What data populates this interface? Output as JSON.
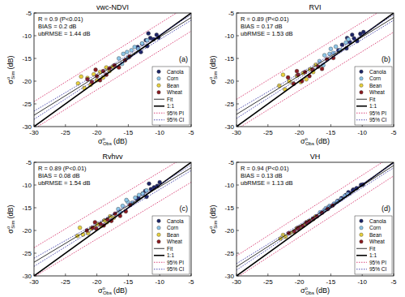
{
  "chart_data": [
    {
      "type": "scatter",
      "title": "vwc-NDVI",
      "annotations": [
        "R = 0.9 (P<0.01)",
        "BIAS = 0.2 dB",
        "ubRMSE = 1.44 dB"
      ],
      "panel_label": "(a)",
      "xlabel": {
        "symbol": "σ",
        "sup": "o",
        "sub": "Obs",
        "unit": "(dB)"
      },
      "ylabel": {
        "symbol": "σ",
        "sup": "o",
        "sub": "Sim",
        "unit": "(dB)"
      },
      "xlim": [
        -30,
        -5
      ],
      "ylim": [
        -30,
        -5
      ],
      "xticks": [
        -30,
        -25,
        -20,
        -15,
        -10,
        -5
      ],
      "yticks": [
        -30,
        -25,
        -20,
        -15,
        -10,
        -5
      ],
      "grid": false,
      "legend": "lower right",
      "series": [
        {
          "name": "Canola",
          "type": "scatter",
          "marker": "circle",
          "color": "#1c2466",
          "x": [
            -13.5,
            -12.8,
            -12,
            -11.5,
            -11,
            -10.5,
            -13,
            -12.2,
            -11.8,
            -10.2
          ],
          "values": [
            -12.5,
            -11.8,
            -12.3,
            -10.5,
            -10.8,
            -9.8,
            -13.6,
            -11,
            -9.5,
            -10.4
          ]
        },
        {
          "name": "Corn",
          "type": "scatter",
          "marker": "circle",
          "color": "#8ec6e8",
          "x": [
            -16.5,
            -15.8,
            -15,
            -14.5,
            -14,
            -13.4,
            -12.8,
            -16,
            -15.2,
            -12
          ],
          "values": [
            -15,
            -14,
            -14.8,
            -13.2,
            -12.5,
            -12.9,
            -11.7,
            -16.2,
            -13.6,
            -11
          ]
        },
        {
          "name": "Bean",
          "type": "scatter",
          "marker": "circle",
          "color": "#e9d23c",
          "x": [
            -23,
            -22,
            -21.5,
            -21,
            -20.5,
            -20,
            -19.5,
            -19,
            -18.5,
            -18,
            -17.5,
            -22.5
          ],
          "values": [
            -20.5,
            -21.5,
            -19.3,
            -20.8,
            -18.5,
            -19.8,
            -18,
            -19.2,
            -17,
            -17.8,
            -16.8,
            -19
          ]
        },
        {
          "name": "Wheat",
          "type": "scatter",
          "marker": "circle",
          "color": "#8b1a1f",
          "x": [
            -21.5,
            -20.8,
            -20,
            -19.5,
            -19,
            -18.5,
            -18,
            -17.2,
            -16.5,
            -15.5,
            -14.8,
            -20.2
          ],
          "values": [
            -19.6,
            -20.2,
            -18.9,
            -19.8,
            -17.8,
            -18.6,
            -17.2,
            -16.5,
            -17,
            -15.4,
            -14.6,
            -17.5
          ]
        },
        {
          "name": "Fit",
          "type": "line",
          "line_style": "solid",
          "color": "#000000",
          "x": [
            -30,
            -5
          ],
          "values": [
            -27.5,
            -6
          ]
        },
        {
          "name": "1:1",
          "type": "line",
          "line_style": "thick",
          "color": "#000000",
          "x": [
            -30,
            -5
          ],
          "values": [
            -30,
            -5
          ]
        },
        {
          "name": "95% PI",
          "type": "line",
          "line_style": "dotted",
          "color": "#d6336c",
          "x": [
            -30,
            -5
          ],
          "upper": [
            -24.5,
            -3
          ],
          "lower": [
            -30.5,
            -9
          ]
        },
        {
          "name": "95% CI",
          "type": "line",
          "line_style": "dotted",
          "color": "#3b3ba8",
          "x": [
            -30,
            -17.5,
            -5
          ],
          "upper": [
            -26.6,
            -16.4,
            -5.4
          ],
          "lower": [
            -28.4,
            -17.2,
            -6.6
          ]
        }
      ]
    },
    {
      "type": "scatter",
      "title": "RVI",
      "annotations": [
        "R = 0.89 (P<0.01)",
        "BIAS = 0.17 dB",
        "ubRMSE = 1.53 dB"
      ],
      "panel_label": "(b)",
      "xlabel": {
        "symbol": "σ",
        "sup": "o",
        "sub": "Obs",
        "unit": "(dB)"
      },
      "ylabel": {
        "symbol": "σ",
        "sup": "o",
        "sub": "Sim",
        "unit": "(dB)"
      },
      "xlim": [
        -30,
        -5
      ],
      "ylim": [
        -30,
        -5
      ],
      "xticks": [
        -30,
        -25,
        -20,
        -15,
        -10,
        -5
      ],
      "yticks": [
        -30,
        -25,
        -20,
        -15,
        -10,
        -5
      ],
      "grid": false,
      "legend": "lower right",
      "series": [
        {
          "name": "Canola",
          "type": "scatter",
          "marker": "circle",
          "color": "#1c2466",
          "x": [
            -13.2,
            -12.5,
            -12,
            -11.3,
            -10.8,
            -10.3,
            -13.8,
            -12.4,
            -11.6,
            -9.8
          ],
          "values": [
            -12,
            -12.8,
            -11.4,
            -10.6,
            -11.2,
            -9.6,
            -13.2,
            -10.5,
            -9.8,
            -9.2
          ]
        },
        {
          "name": "Corn",
          "type": "scatter",
          "marker": "circle",
          "color": "#8ec6e8",
          "x": [
            -16.8,
            -16,
            -15.2,
            -14.6,
            -14.2,
            -13.5,
            -12.6,
            -16.2,
            -15,
            -12.2
          ],
          "values": [
            -15.6,
            -14.3,
            -14,
            -13.8,
            -12.4,
            -13.2,
            -11.5,
            -16.5,
            -12.9,
            -10.8
          ]
        },
        {
          "name": "Bean",
          "type": "scatter",
          "marker": "circle",
          "color": "#e9d23c",
          "x": [
            -23.2,
            -22.3,
            -21.6,
            -21,
            -20.4,
            -19.8,
            -19.4,
            -18.9,
            -18.3,
            -17.8,
            -17.4,
            -22.6
          ],
          "values": [
            -21,
            -21.8,
            -20,
            -20.5,
            -18.8,
            -20.2,
            -18.2,
            -19.6,
            -17.4,
            -18,
            -16.4,
            -18.6
          ]
        },
        {
          "name": "Wheat",
          "type": "scatter",
          "marker": "circle",
          "color": "#8b1a1f",
          "x": [
            -21.8,
            -20.9,
            -20.2,
            -19.6,
            -19.1,
            -18.4,
            -17.9,
            -17,
            -16.4,
            -15.6,
            -14.6,
            -20.4
          ],
          "values": [
            -19.2,
            -20.6,
            -18.6,
            -20,
            -18,
            -18.9,
            -17.5,
            -16.8,
            -17.3,
            -15.2,
            -14.9,
            -17.8
          ]
        },
        {
          "name": "Fit",
          "type": "line",
          "line_style": "solid",
          "color": "#000000",
          "x": [
            -30,
            -5
          ],
          "values": [
            -27.3,
            -6
          ]
        },
        {
          "name": "1:1",
          "type": "line",
          "line_style": "thick",
          "color": "#000000",
          "x": [
            -30,
            -5
          ],
          "values": [
            -30,
            -5
          ]
        },
        {
          "name": "95% PI",
          "type": "line",
          "line_style": "dotted",
          "color": "#d6336c",
          "x": [
            -30,
            -5
          ],
          "upper": [
            -24,
            -2.8
          ],
          "lower": [
            -30.6,
            -9.2
          ]
        },
        {
          "name": "95% CI",
          "type": "line",
          "line_style": "dotted",
          "color": "#3b3ba8",
          "x": [
            -30,
            -17.5,
            -5
          ],
          "upper": [
            -26.4,
            -16.3,
            -5.4
          ],
          "lower": [
            -28.2,
            -17.1,
            -6.6
          ]
        }
      ]
    },
    {
      "type": "scatter",
      "title": "Rvhvv",
      "annotations": [
        "R = 0.89 (P<0.01)",
        "BIAS = 0.08 dB",
        "ubRMSE = 1.54 dB"
      ],
      "panel_label": "(c)",
      "xlabel": {
        "symbol": "σ",
        "sup": "o",
        "sub": "Obs",
        "unit": "(dB)"
      },
      "ylabel": {
        "symbol": "σ",
        "sup": "o",
        "sub": "Sim",
        "unit": "(dB)"
      },
      "xlim": [
        -30,
        -5
      ],
      "ylim": [
        -30,
        -5
      ],
      "xticks": [
        -30,
        -25,
        -20,
        -15,
        -10,
        -5
      ],
      "yticks": [
        -30,
        -25,
        -20,
        -15,
        -10,
        -5
      ],
      "grid": false,
      "legend": "lower right",
      "series": [
        {
          "name": "Canola",
          "type": "scatter",
          "marker": "circle",
          "color": "#1c2466",
          "x": [
            -13.4,
            -12.7,
            -12.1,
            -11.4,
            -10.9,
            -10.4,
            -13.7,
            -12.3,
            -11.7,
            -10
          ],
          "values": [
            -12.8,
            -11.9,
            -12.6,
            -10.9,
            -10.5,
            -10.2,
            -13,
            -11.3,
            -9.7,
            -9.4
          ]
        },
        {
          "name": "Corn",
          "type": "scatter",
          "marker": "circle",
          "color": "#8ec6e8",
          "x": [
            -16.6,
            -15.9,
            -15.1,
            -14.4,
            -13.9,
            -13.3,
            -12.7,
            -16.3,
            -15.3,
            -12.1
          ],
          "values": [
            -15.3,
            -14.6,
            -13.7,
            -13.9,
            -12.8,
            -12.2,
            -11.9,
            -16,
            -13.3,
            -11.2
          ]
        },
        {
          "name": "Bean",
          "type": "scatter",
          "marker": "circle",
          "color": "#e9d23c",
          "x": [
            -23.1,
            -22.2,
            -21.4,
            -20.9,
            -20.3,
            -19.9,
            -19.3,
            -18.8,
            -18.4,
            -17.9,
            -17.3,
            -22.7
          ],
          "values": [
            -21.2,
            -20.9,
            -20.6,
            -19.6,
            -19.4,
            -18.6,
            -19,
            -17.8,
            -18.2,
            -16.9,
            -17.2,
            -19.4
          ]
        },
        {
          "name": "Wheat",
          "type": "scatter",
          "marker": "circle",
          "color": "#8b1a1f",
          "x": [
            -21.6,
            -20.7,
            -20.1,
            -19.4,
            -18.9,
            -18.3,
            -17.7,
            -17.1,
            -16.3,
            -15.4,
            -14.7,
            -20.3
          ],
          "values": [
            -20,
            -19.4,
            -19.6,
            -18.6,
            -18.9,
            -17.6,
            -17.9,
            -16.3,
            -16.8,
            -15.8,
            -14.4,
            -18.2
          ]
        },
        {
          "name": "Fit",
          "type": "line",
          "line_style": "solid",
          "color": "#000000",
          "x": [
            -30,
            -5
          ],
          "values": [
            -27,
            -6.2
          ]
        },
        {
          "name": "1:1",
          "type": "line",
          "line_style": "thick",
          "color": "#000000",
          "x": [
            -30,
            -5
          ],
          "values": [
            -30,
            -5
          ]
        },
        {
          "name": "95% PI",
          "type": "line",
          "line_style": "dotted",
          "color": "#d6336c",
          "x": [
            -30,
            -5
          ],
          "upper": [
            -23.8,
            -3
          ],
          "lower": [
            -30.2,
            -9.4
          ]
        },
        {
          "name": "95% CI",
          "type": "line",
          "line_style": "dotted",
          "color": "#3b3ba8",
          "x": [
            -30,
            -17.5,
            -5
          ],
          "upper": [
            -26.1,
            -16.4,
            -5.6
          ],
          "lower": [
            -27.9,
            -17.2,
            -6.8
          ]
        }
      ]
    },
    {
      "type": "scatter",
      "title": "VH",
      "annotations": [
        "R = 0.94 (P<0.01)",
        "BIAS = 0.13 dB",
        "ubRMSE = 1.13 dB"
      ],
      "panel_label": "(d)",
      "xlabel": {
        "symbol": "σ",
        "sup": "o",
        "sub": "Obs",
        "unit": "(dB)"
      },
      "ylabel": {
        "symbol": "σ",
        "sup": "o",
        "sub": "Sim",
        "unit": "(dB)"
      },
      "xlim": [
        -30,
        -5
      ],
      "ylim": [
        -30,
        -5
      ],
      "xticks": [
        -30,
        -25,
        -20,
        -15,
        -10,
        -5
      ],
      "yticks": [
        -30,
        -25,
        -20,
        -15,
        -10,
        -5
      ],
      "grid": false,
      "legend": "lower right",
      "series": [
        {
          "name": "Canola",
          "type": "scatter",
          "marker": "circle",
          "color": "#1c2466",
          "x": [
            -13.3,
            -12.6,
            -12,
            -11.4,
            -10.9,
            -10.2,
            -13.9,
            -12.2,
            -11.5,
            -9.9
          ],
          "values": [
            -12.9,
            -12.2,
            -11.8,
            -11,
            -10.7,
            -10,
            -13.5,
            -11.6,
            -11.2,
            -9.9
          ]
        },
        {
          "name": "Corn",
          "type": "scatter",
          "marker": "circle",
          "color": "#8ec6e8",
          "x": [
            -16.7,
            -15.8,
            -15.2,
            -14.5,
            -14,
            -13.4,
            -12.8,
            -16.1,
            -15.4,
            -12.3
          ],
          "values": [
            -16,
            -15.1,
            -14.6,
            -14.1,
            -13.6,
            -13.1,
            -12.4,
            -15.6,
            -14.9,
            -12
          ]
        },
        {
          "name": "Bean",
          "type": "scatter",
          "marker": "circle",
          "color": "#e9d23c",
          "x": [
            -23,
            -22.2,
            -21.5,
            -20.9,
            -20.4,
            -19.8,
            -19.3,
            -18.9,
            -18.4,
            -17.8,
            -17.4,
            -22.6
          ],
          "values": [
            -21.8,
            -21.4,
            -20.6,
            -20.3,
            -19.5,
            -19.2,
            -18.9,
            -18.2,
            -17.9,
            -17.5,
            -16.9,
            -21
          ]
        },
        {
          "name": "Wheat",
          "type": "scatter",
          "marker": "circle",
          "color": "#8b1a1f",
          "x": [
            -21.7,
            -20.8,
            -20.1,
            -19.5,
            -18.9,
            -18.4,
            -17.8,
            -17.2,
            -16.4,
            -15.5,
            -14.7,
            -20.3
          ],
          "values": [
            -20.6,
            -20.2,
            -19.4,
            -19,
            -18.3,
            -18,
            -17.4,
            -16.9,
            -16.1,
            -15.3,
            -14.5,
            -19.6
          ]
        },
        {
          "name": "Fit",
          "type": "line",
          "line_style": "solid",
          "color": "#000000",
          "x": [
            -30,
            -5
          ],
          "values": [
            -28,
            -5.7
          ]
        },
        {
          "name": "1:1",
          "type": "line",
          "line_style": "thick",
          "color": "#000000",
          "x": [
            -30,
            -5
          ],
          "values": [
            -30,
            -5
          ]
        },
        {
          "name": "95% PI",
          "type": "line",
          "line_style": "dotted",
          "color": "#d6336c",
          "x": [
            -30,
            -5
          ],
          "upper": [
            -25.6,
            -3.4
          ],
          "lower": [
            -30.4,
            -8
          ]
        },
        {
          "name": "95% CI",
          "type": "line",
          "line_style": "dotted",
          "color": "#3b3ba8",
          "x": [
            -30,
            -17.5,
            -5
          ],
          "upper": [
            -27.3,
            -16.6,
            -5.2
          ],
          "lower": [
            -28.7,
            -17.2,
            -6.2
          ]
        }
      ]
    }
  ]
}
